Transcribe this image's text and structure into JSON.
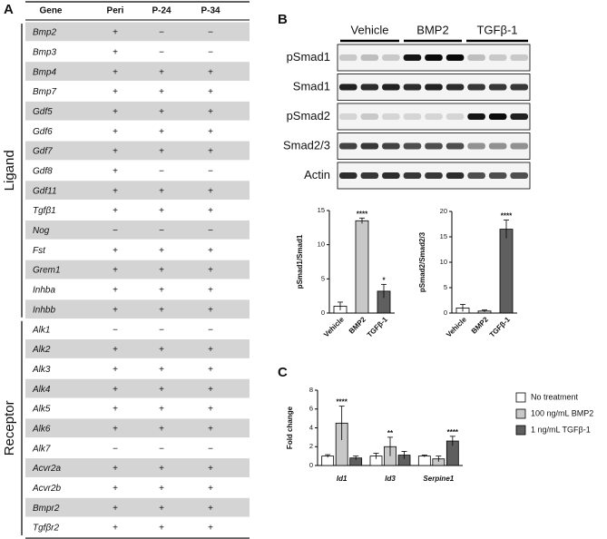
{
  "panel_labels": [
    "A",
    "B",
    "C"
  ],
  "table": {
    "header": [
      "Gene",
      "Peri",
      "P-24",
      "P-34"
    ],
    "groups": [
      "Ligand",
      "Receptor"
    ],
    "rows": [
      [
        "Bmp2",
        "+",
        "−",
        "−"
      ],
      [
        "Bmp3",
        "+",
        "−",
        "−"
      ],
      [
        "Bmp4",
        "+",
        "+",
        "+"
      ],
      [
        "Bmp7",
        "+",
        "+",
        "+"
      ],
      [
        "Gdf5",
        "+",
        "+",
        "+"
      ],
      [
        "Gdf6",
        "+",
        "+",
        "+"
      ],
      [
        "Gdf7",
        "+",
        "+",
        "+"
      ],
      [
        "Gdf8",
        "+",
        "−",
        "−"
      ],
      [
        "Gdf11",
        "+",
        "+",
        "+"
      ],
      [
        "Tgfβ1",
        "+",
        "+",
        "+"
      ],
      [
        "Nog",
        "−",
        "−",
        "−"
      ],
      [
        "Fst",
        "+",
        "+",
        "+"
      ],
      [
        "Grem1",
        "+",
        "+",
        "+"
      ],
      [
        "Inhba",
        "+",
        "+",
        "+"
      ],
      [
        "Inhbb",
        "+",
        "+",
        "+"
      ],
      [
        "Alk1",
        "−",
        "−",
        "−"
      ],
      [
        "Alk2",
        "+",
        "+",
        "+"
      ],
      [
        "Alk3",
        "+",
        "+",
        "+"
      ],
      [
        "Alk4",
        "+",
        "+",
        "+"
      ],
      [
        "Alk5",
        "+",
        "+",
        "+"
      ],
      [
        "Alk6",
        "+",
        "+",
        "+"
      ],
      [
        "Alk7",
        "−",
        "−",
        "−"
      ],
      [
        "Acvr2a",
        "+",
        "+",
        "+"
      ],
      [
        "Acvr2b",
        "+",
        "+",
        "+"
      ],
      [
        "Bmpr2",
        "+",
        "+",
        "+"
      ],
      [
        "Tgfβr2",
        "+",
        "+",
        "+"
      ]
    ]
  },
  "blot": {
    "groups": [
      "Vehicle",
      "BMP2",
      "TGFβ-1"
    ],
    "rows": [
      "pSmad1",
      "Smad1",
      "pSmad2",
      "Smad2/3",
      "Actin"
    ]
  },
  "chart_data": [
    {
      "type": "bar",
      "y_label": "pSmad1/Smad1",
      "categories": [
        "Vehicle",
        "BMP2",
        "TGFβ-1"
      ],
      "values": [
        1.0,
        13.5,
        3.2
      ],
      "errors": [
        0.6,
        0.4,
        1.0
      ],
      "significance": [
        null,
        "****",
        "*"
      ],
      "colors": [
        "#ffffff",
        "#c8c8c8",
        "#5f5f5f"
      ],
      "ylim": [
        0,
        15
      ],
      "yticks": [
        0,
        5,
        10,
        15
      ]
    },
    {
      "type": "bar",
      "y_label": "pSmad2/Smad2/3",
      "categories": [
        "Vehicle",
        "BMP2",
        "TGFβ-1"
      ],
      "values": [
        1.0,
        0.4,
        16.5
      ],
      "errors": [
        0.7,
        0.2,
        1.8
      ],
      "significance": [
        null,
        null,
        "****"
      ],
      "colors": [
        "#ffffff",
        "#c8c8c8",
        "#5f5f5f"
      ],
      "ylim": [
        0,
        20
      ],
      "yticks": [
        0,
        5,
        10,
        15,
        20
      ]
    },
    {
      "type": "grouped-bar",
      "y_label": "Fold change",
      "categories": [
        "Id1",
        "Id3",
        "Serpine1"
      ],
      "series": [
        {
          "name": "No treatment",
          "color": "#ffffff",
          "values": [
            1.0,
            1.0,
            1.0
          ],
          "errors": [
            0.15,
            0.3,
            0.1
          ],
          "significance": [
            null,
            null,
            null
          ]
        },
        {
          "name": "100 ng/mL BMP2",
          "color": "#c8c8c8",
          "values": [
            4.5,
            2.0,
            0.7
          ],
          "errors": [
            1.8,
            1.0,
            0.3
          ],
          "significance": [
            "****",
            "**",
            null
          ]
        },
        {
          "name": "1 ng/mL TGFβ-1",
          "color": "#5f5f5f",
          "values": [
            0.8,
            1.1,
            2.6
          ],
          "errors": [
            0.2,
            0.4,
            0.5
          ],
          "significance": [
            null,
            null,
            "****"
          ]
        }
      ],
      "ylim": [
        0,
        8
      ],
      "yticks": [
        0,
        2,
        4,
        6,
        8
      ],
      "legend": "right"
    }
  ]
}
